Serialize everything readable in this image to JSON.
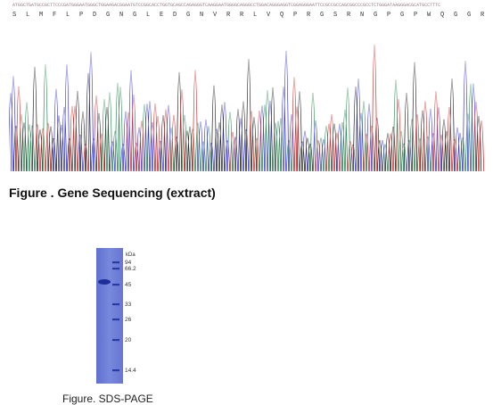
{
  "sequencing": {
    "nucleotides": "ATGGCTGATGCCGCTTCCCGATGGGAATGGGCTGGAAGACGGAATGTCCGGCACCTGGTGCAGCCAGAGGGTCAAGGAATGGGGCAGGGCCTGGACAGGGAGGTCGGAGGGAATTCCGCCGCCAGCGGCCCGCCTCTGGGATAAGGGACGCATGCCTTTC",
    "amino_acids": "S L M F L P D G N G L E D G N V R R L V Q P R G S R N G P G P W Q G G R R X F R R Q R P R L S R E G P M F F",
    "trace_colors": {
      "A": "#2e8b57",
      "C": "#3a3ad0",
      "G": "#222222",
      "T": "#d03030"
    },
    "caption": "Figure . Gene Sequencing (extract)"
  },
  "sds_page": {
    "unit_label": "kDa",
    "markers": [
      "94",
      "66.2",
      "45",
      "33",
      "26",
      "20",
      "14.4"
    ],
    "caption": "Figure. SDS-PAGE",
    "gel_color": "#6f7fd6"
  }
}
